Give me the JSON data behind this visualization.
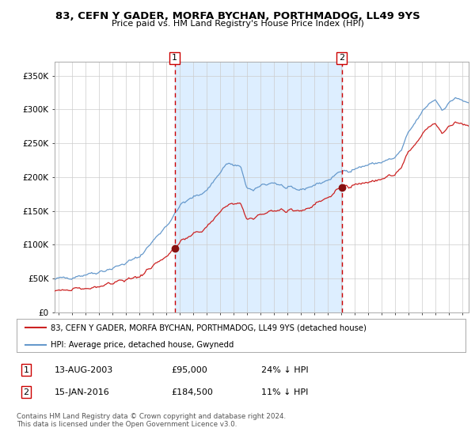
{
  "title": "83, CEFN Y GADER, MORFA BYCHAN, PORTHMADOG, LL49 9YS",
  "subtitle": "Price paid vs. HM Land Registry's House Price Index (HPI)",
  "legend_line1": "83, CEFN Y GADER, MORFA BYCHAN, PORTHMADOG, LL49 9YS (detached house)",
  "legend_line2": "HPI: Average price, detached house, Gwynedd",
  "annotation1_date": "13-AUG-2003",
  "annotation1_price": "£95,000",
  "annotation1_hpi": "24% ↓ HPI",
  "annotation2_date": "15-JAN-2016",
  "annotation2_price": "£184,500",
  "annotation2_hpi": "11% ↓ HPI",
  "footer": "Contains HM Land Registry data © Crown copyright and database right 2024.\nThis data is licensed under the Open Government Licence v3.0.",
  "hpi_color": "#6699cc",
  "property_color": "#cc2222",
  "vline_color": "#cc0000",
  "dot_color": "#881111",
  "background_color": "#ddeeff",
  "sale1_date_num": 2003.62,
  "sale1_price": 95000,
  "sale2_date_num": 2016.04,
  "sale2_price": 184500,
  "ylim": [
    0,
    370000
  ],
  "xlim_start": 1994.7,
  "xlim_end": 2025.5
}
